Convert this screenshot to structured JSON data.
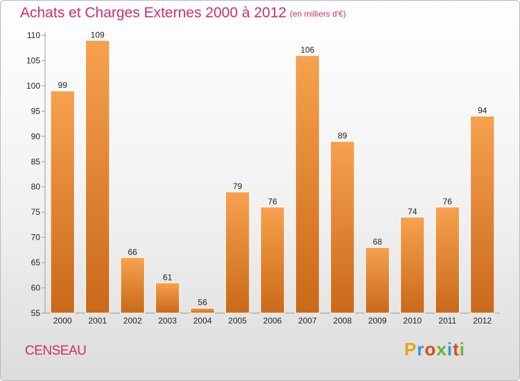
{
  "header": {
    "title": "Achats et Charges Externes 2000 à 2012",
    "unit": "(en milliers d'€)"
  },
  "footer": {
    "commune": "CENSEAU",
    "logo_text": "Proxiti"
  },
  "colors": {
    "title": "#d02c6d",
    "bar_top": "#f7a14e",
    "bar_bottom": "#c9691a"
  },
  "chart_data": {
    "type": "bar",
    "title": "Achats et Charges Externes 2000 à 2012",
    "subtitle": "(en milliers d'€)",
    "xlabel": "",
    "ylabel": "",
    "categories": [
      "2000",
      "2001",
      "2002",
      "2003",
      "2004",
      "2005",
      "2006",
      "2007",
      "2008",
      "2009",
      "2010",
      "2011",
      "2012"
    ],
    "values": [
      99,
      109,
      66,
      61,
      56,
      79,
      76,
      106,
      89,
      68,
      74,
      76,
      94
    ],
    "ylim": [
      55,
      110
    ],
    "yticks": [
      55,
      60,
      65,
      70,
      75,
      80,
      85,
      90,
      95,
      100,
      105,
      110
    ],
    "grid": false,
    "data_labels": true
  }
}
